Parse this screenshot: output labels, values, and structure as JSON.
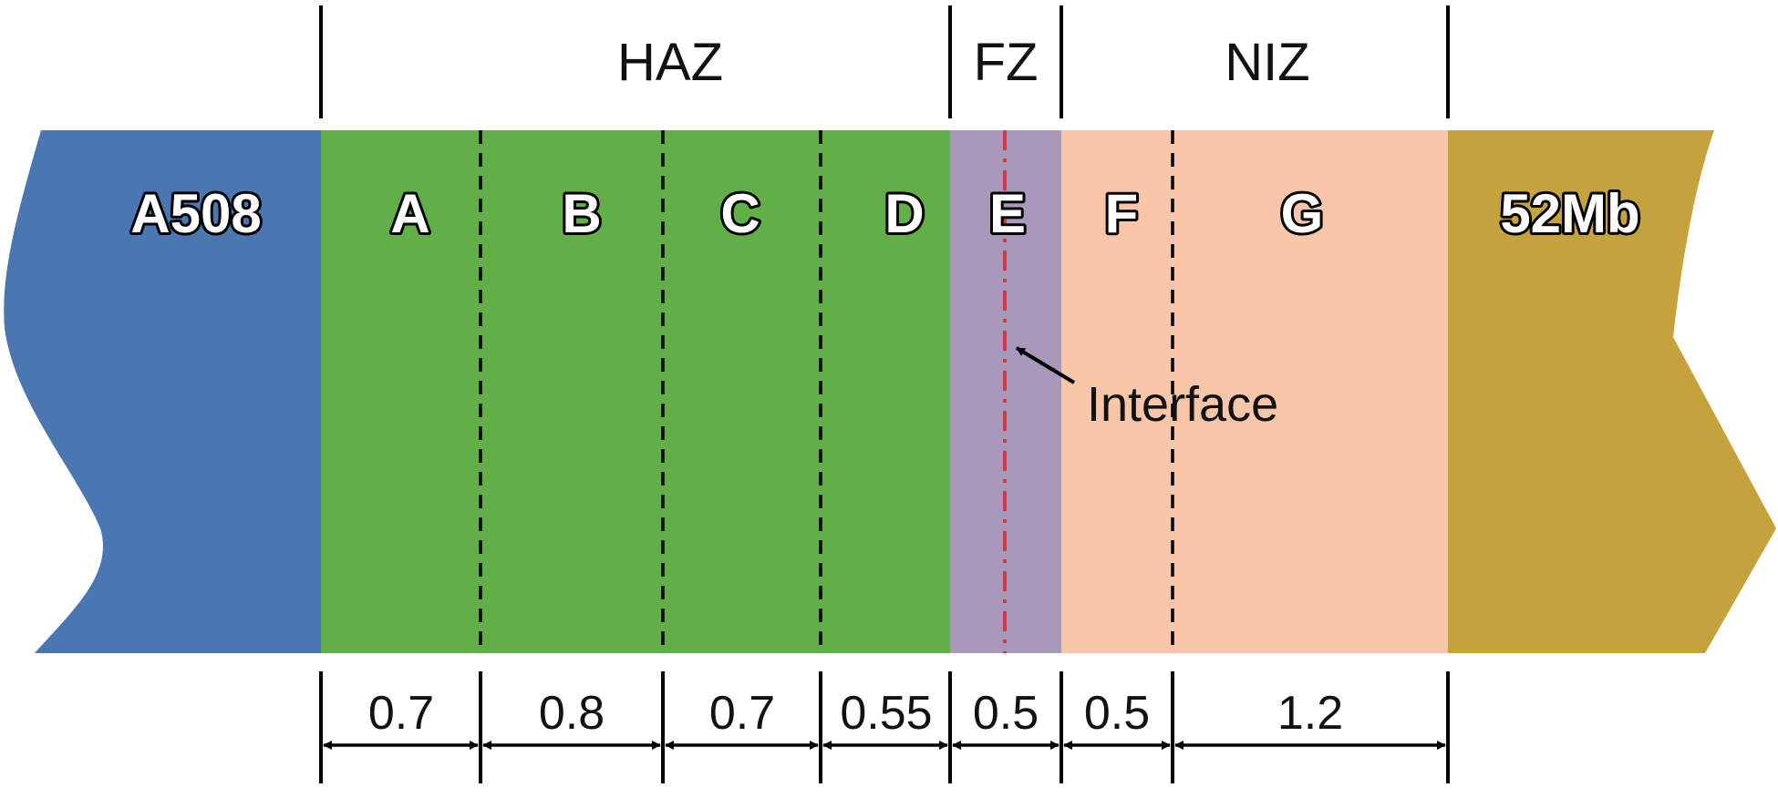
{
  "colors": {
    "a508": "#4a76b2",
    "haz": "#62ae47",
    "fz": "#a898bb",
    "niz": "#f7c6a8",
    "mb52": "#c6a23c",
    "interface_line": "#d23a3a",
    "ink": "#000000"
  },
  "materials": {
    "left": "A508",
    "right": "52Mb"
  },
  "groups": [
    {
      "label": "HAZ"
    },
    {
      "label": "FZ"
    },
    {
      "label": "NIZ"
    }
  ],
  "zones": [
    {
      "label": "A",
      "width": "0.7"
    },
    {
      "label": "B",
      "width": "0.8"
    },
    {
      "label": "C",
      "width": "0.7"
    },
    {
      "label": "D",
      "width": "0.55"
    },
    {
      "label": "E",
      "width": "0.5"
    },
    {
      "label": "F",
      "width": "0.5"
    },
    {
      "label": "G",
      "width": "1.2"
    }
  ],
  "annotation": {
    "label": "Interface"
  }
}
